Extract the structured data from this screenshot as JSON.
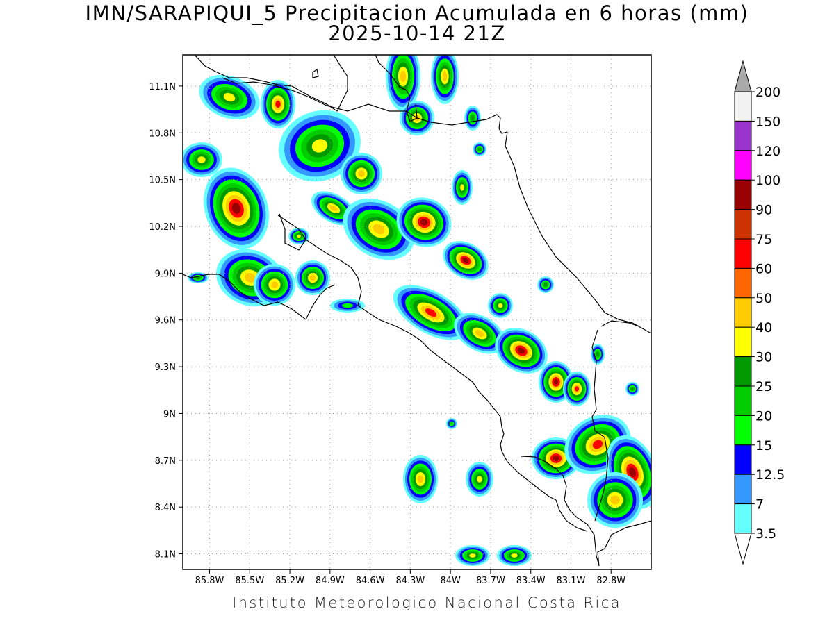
{
  "title": {
    "line1": "IMN/SARAPIQUI_5 Precipitacion Acumulada en 6 horas (mm)",
    "line2": "2025-10-14 21Z"
  },
  "footer": "Instituto Meteorologico Nacional Costa Rica",
  "map": {
    "lon_range": [
      -86.0,
      -82.5
    ],
    "lat_range": [
      8.0,
      11.3
    ],
    "lat_ticks": [
      "11.1N",
      "10.8N",
      "10.5N",
      "10.2N",
      "9.9N",
      "9.6N",
      "9.3N",
      "9N",
      "8.7N",
      "8.4N",
      "8.1N"
    ],
    "lat_tick_values": [
      11.1,
      10.8,
      10.5,
      10.2,
      9.9,
      9.6,
      9.3,
      9.0,
      8.7,
      8.4,
      8.1
    ],
    "lon_ticks": [
      "85.8W",
      "85.5W",
      "85.2W",
      "84.9W",
      "84.6W",
      "84.3W",
      "84W",
      "83.7W",
      "83.4W",
      "83.1W",
      "82.8W"
    ],
    "lon_tick_values": [
      -85.8,
      -85.5,
      -85.2,
      -84.9,
      -84.6,
      -84.3,
      -84.0,
      -83.7,
      -83.4,
      -83.1,
      -82.8
    ],
    "grid": "dotted"
  },
  "colorbar": {
    "levels": [
      "200",
      "150",
      "120",
      "100",
      "90",
      "75",
      "60",
      "50",
      "40",
      "30",
      "25",
      "20",
      "15",
      "12.5",
      "7",
      "3.5"
    ],
    "colors_top_to_bottom": [
      "#f2f2f2",
      "#9933cc",
      "#ff00ff",
      "#990000",
      "#cc3300",
      "#ff0000",
      "#ff6600",
      "#ffcc00",
      "#ffff00",
      "#009900",
      "#00cc00",
      "#00ff00",
      "#0000ff",
      "#3399ff",
      "#66ffff"
    ],
    "over_color": "#aaaaaa",
    "under_color": "#ffffff"
  }
}
